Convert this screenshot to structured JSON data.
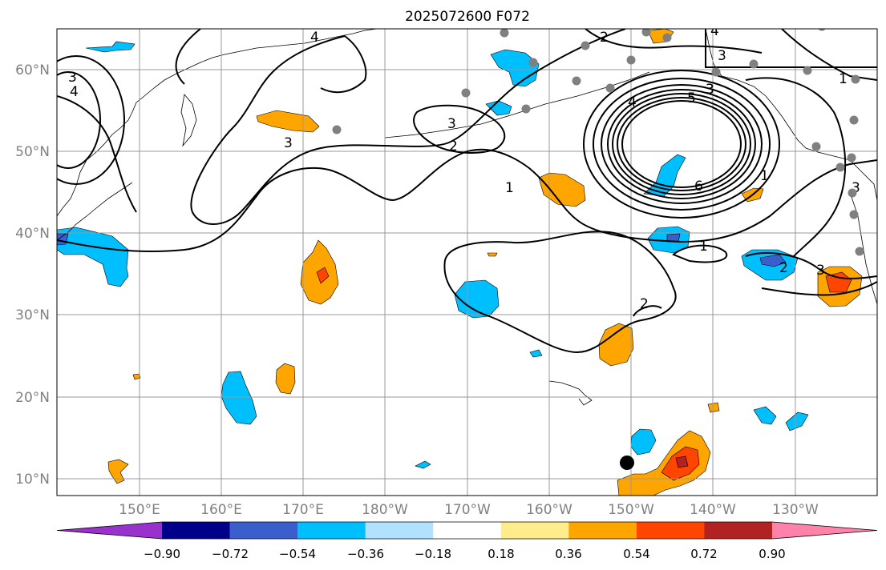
{
  "title": "2025072600 F072",
  "map": {
    "lon_ticks": [
      "150°E",
      "160°E",
      "170°E",
      "180°W",
      "170°W",
      "160°W",
      "150°W",
      "140°W",
      "130°W"
    ],
    "lat_ticks": [
      "60°N",
      "50°N",
      "40°N",
      "30°N",
      "20°N",
      "10°N"
    ],
    "contour_labels": [
      "4",
      "3",
      "4",
      "3",
      "2",
      "3",
      "3",
      "3",
      "2",
      "1",
      "3",
      "5",
      "4",
      "6",
      "1",
      "1",
      "1",
      "2",
      "3",
      "2",
      "4",
      "3"
    ]
  },
  "colorbar": {
    "tick_labels": [
      "−0.90",
      "−0.72",
      "−0.54",
      "−0.36",
      "−0.18",
      "0.18",
      "0.36",
      "0.54",
      "0.72",
      "0.90"
    ],
    "colors": [
      "#9932cc",
      "#00008b",
      "#3a5fcd",
      "#00bfff",
      "#b0e2ff",
      "#ffffff",
      "#ffec8b",
      "#ffa500",
      "#ff4500",
      "#b22222",
      "#ff82ab"
    ]
  },
  "legend_colors": {
    "shading_negative": "#00bfff",
    "shading_positive": "#ffa500",
    "contour": "#000000",
    "station_marker": "#808080"
  }
}
